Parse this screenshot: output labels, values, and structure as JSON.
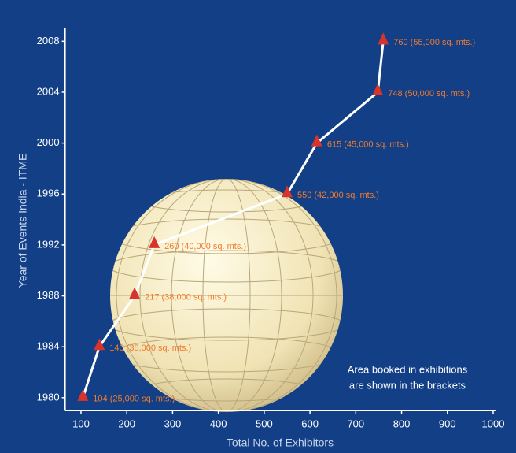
{
  "chart_data": {
    "type": "line",
    "x_label": "Total No. of Exhibitors",
    "y_label": "Year of Events India - ITME",
    "annotation": [
      "Area booked in exhibitions",
      "are shown in the brackets"
    ],
    "x": [
      104,
      140,
      217,
      260,
      550,
      615,
      748,
      760
    ],
    "series": [
      {
        "color": "#ffffff",
        "marker_color": "#d9342b",
        "values": [
          1980,
          1984,
          1988,
          1992,
          1996,
          2000,
          2004,
          2008
        ],
        "value_labels": [
          "104 (25,000 sq. mts.)",
          "140 (35,000 sq. mts.)",
          "217 (38,000 sq. mts.)",
          "260 (40,000 sq. mts.)",
          "550 (42,000 sq. mts.)",
          "615 (45,000 sq. mts.)",
          "748 (50,000 sq. mts.)",
          "760 (55,000 sq. mts.)"
        ]
      }
    ],
    "xlim": [
      65,
      1005
    ],
    "ylim": [
      1979,
      2010
    ],
    "xticks": [
      100,
      200,
      300,
      400,
      500,
      600,
      700,
      800,
      900,
      1000
    ],
    "yticks": [
      1980,
      1984,
      1988,
      1992,
      1996,
      2000,
      2004,
      2008
    ]
  }
}
